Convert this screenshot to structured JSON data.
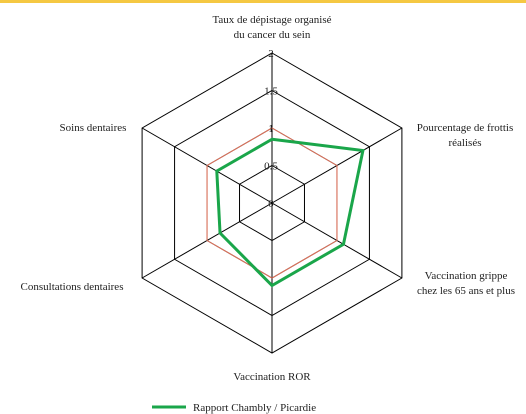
{
  "chart_data": {
    "type": "radar",
    "categories": [
      "Taux de dépistage organisé\ndu cancer du sein",
      "Pourcentage de frottis\nréalisés",
      "Vaccination grippe\nchez les 65 ans et plus",
      "Vaccination ROR",
      "Consultations dentaires",
      "Soins dentaires"
    ],
    "series": [
      {
        "color": "#e8735a",
        "values": [
          1,
          1,
          1,
          1,
          1,
          1
        ]
      },
      {
        "name": "Rapport Chambly / Picardie",
        "color": "#1aa64a",
        "values": [
          0.85,
          1.4,
          1.1,
          1.1,
          0.8,
          0.85
        ]
      }
    ],
    "ylim": [
      0,
      2
    ],
    "yticks": [
      0,
      0.5,
      1,
      1.5,
      2
    ],
    "grid": true
  }
}
